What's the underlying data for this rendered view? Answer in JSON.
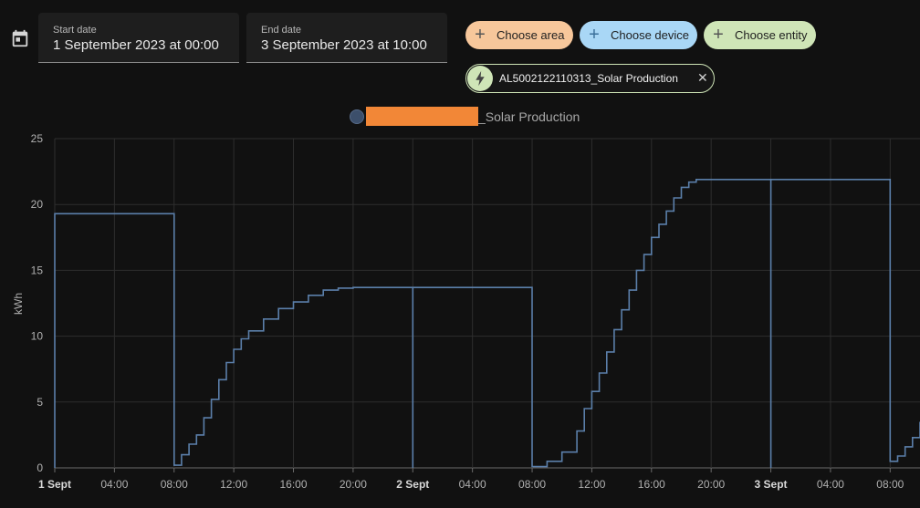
{
  "date_picker": {
    "start_label": "Start date",
    "start_value": "1 September 2023 at 00:00",
    "end_label": "End date",
    "end_value": "3 September 2023 at 10:00"
  },
  "target_picker": {
    "area_label": "Choose area",
    "device_label": "Choose device",
    "entity_label": "Choose entity",
    "selected_entity": "AL5002122110313_Solar Production",
    "selected_entity_icon": "flash-icon"
  },
  "colors": {
    "line": "#5b7faa",
    "area_chip": "#f7c79b",
    "device_chip": "#a9d7f6",
    "entity_chip": "#cfe5b7",
    "redaction": "#f28737"
  },
  "chart_data": {
    "type": "line",
    "legend": [
      {
        "name": "_Solar Production",
        "redacted_prefix": true
      }
    ],
    "ylabel": "kWh",
    "ylim": [
      0,
      25
    ],
    "y_ticks": [
      "0",
      "5",
      "10",
      "15",
      "20",
      "25"
    ],
    "xlim_hours": [
      0,
      58
    ],
    "x_ticks": [
      {
        "label": "1 Sept",
        "hour": 0,
        "bold": true
      },
      {
        "label": "04:00",
        "hour": 4
      },
      {
        "label": "08:00",
        "hour": 8
      },
      {
        "label": "12:00",
        "hour": 12
      },
      {
        "label": "16:00",
        "hour": 16
      },
      {
        "label": "20:00",
        "hour": 20
      },
      {
        "label": "2 Sept",
        "hour": 24,
        "bold": true
      },
      {
        "label": "04:00",
        "hour": 28
      },
      {
        "label": "08:00",
        "hour": 32
      },
      {
        "label": "12:00",
        "hour": 36
      },
      {
        "label": "16:00",
        "hour": 40
      },
      {
        "label": "20:00",
        "hour": 44
      },
      {
        "label": "3 Sept",
        "hour": 48,
        "bold": true
      },
      {
        "label": "04:00",
        "hour": 52
      },
      {
        "label": "08:00",
        "hour": 56
      }
    ],
    "series": [
      {
        "name": "_Solar Production",
        "step": true,
        "points": [
          [
            0,
            0
          ],
          [
            0,
            19.3
          ],
          [
            8,
            19.3
          ],
          [
            8,
            0.2
          ],
          [
            8.5,
            1.0
          ],
          [
            9,
            1.8
          ],
          [
            9.5,
            2.5
          ],
          [
            10,
            3.8
          ],
          [
            10.5,
            5.2
          ],
          [
            11,
            6.7
          ],
          [
            11.5,
            8.0
          ],
          [
            12,
            9.0
          ],
          [
            12.5,
            9.8
          ],
          [
            13,
            10.4
          ],
          [
            14,
            11.3
          ],
          [
            15,
            12.1
          ],
          [
            16,
            12.6
          ],
          [
            17,
            13.1
          ],
          [
            18,
            13.5
          ],
          [
            19,
            13.65
          ],
          [
            20,
            13.7
          ],
          [
            24,
            13.7
          ],
          [
            24,
            0
          ],
          [
            24,
            13.7
          ],
          [
            32,
            13.7
          ],
          [
            32,
            0.1
          ],
          [
            33,
            0.5
          ],
          [
            34,
            1.2
          ],
          [
            35,
            2.8
          ],
          [
            35.5,
            4.5
          ],
          [
            36,
            5.8
          ],
          [
            36.5,
            7.2
          ],
          [
            37,
            8.8
          ],
          [
            37.5,
            10.5
          ],
          [
            38,
            12.0
          ],
          [
            38.5,
            13.5
          ],
          [
            39,
            15.0
          ],
          [
            39.5,
            16.2
          ],
          [
            40,
            17.5
          ],
          [
            40.5,
            18.5
          ],
          [
            41,
            19.5
          ],
          [
            41.5,
            20.5
          ],
          [
            42,
            21.3
          ],
          [
            42.5,
            21.7
          ],
          [
            43,
            21.9
          ],
          [
            48,
            21.9
          ],
          [
            48,
            0
          ],
          [
            48,
            21.9
          ],
          [
            56,
            21.9
          ],
          [
            56,
            0.5
          ],
          [
            56.5,
            0.9
          ],
          [
            57,
            1.6
          ],
          [
            57.5,
            2.3
          ],
          [
            58,
            3.5
          ]
        ]
      }
    ]
  }
}
